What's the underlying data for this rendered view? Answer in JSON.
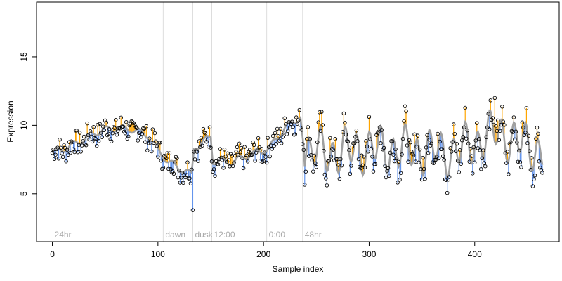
{
  "chart_data": {
    "type": "scatter",
    "title": "",
    "xlabel": "Sample index",
    "ylabel": "Expression",
    "xlim": [
      -15,
      480
    ],
    "ylim": [
      1.5,
      19
    ],
    "xticks": [
      0,
      100,
      200,
      300,
      400
    ],
    "yticks": [
      5,
      10,
      15
    ],
    "grid": false,
    "colors": {
      "observed_points": "#000000",
      "fitted_line": "#a0a0a0",
      "residual_above": "#ffa500",
      "residual_below": "#6495ed",
      "period_lines": "#dddddd",
      "period_labels": "#aaaaaa"
    },
    "period_markers": [
      {
        "label": "24hr",
        "x": 0
      },
      {
        "label": "dawn",
        "x": 105
      },
      {
        "label": "dusk",
        "x": 133
      },
      {
        "label": "12:00",
        "x": 151
      },
      {
        "label": "0:00",
        "x": 203
      },
      {
        "label": "48hr",
        "x": 237
      }
    ],
    "point_count": 465,
    "x": [
      0,
      465
    ],
    "y_anchor_points": [
      {
        "x": 0,
        "y": 8.0
      },
      {
        "x": 15,
        "y": 8.4
      },
      {
        "x": 30,
        "y": 9.0
      },
      {
        "x": 45,
        "y": 9.6
      },
      {
        "x": 60,
        "y": 9.8
      },
      {
        "x": 75,
        "y": 9.7
      },
      {
        "x": 90,
        "y": 9.3
      },
      {
        "x": 100,
        "y": 8.2
      },
      {
        "x": 110,
        "y": 7.3
      },
      {
        "x": 120,
        "y": 6.9
      },
      {
        "x": 132,
        "y": 6.4
      },
      {
        "x": 134,
        "y": 8.3
      },
      {
        "x": 150,
        "y": 9.2
      },
      {
        "x": 152,
        "y": 7.4
      },
      {
        "x": 170,
        "y": 7.3
      },
      {
        "x": 185,
        "y": 7.8
      },
      {
        "x": 205,
        "y": 8.3
      },
      {
        "x": 220,
        "y": 9.8
      },
      {
        "x": 235,
        "y": 10.6
      },
      {
        "x": 238,
        "y": 8.2
      },
      {
        "x": 260,
        "y": 8.0
      },
      {
        "x": 300,
        "y": 8.3
      },
      {
        "x": 340,
        "y": 8.2
      },
      {
        "x": 380,
        "y": 8.0
      },
      {
        "x": 420,
        "y": 9.5
      },
      {
        "x": 465,
        "y": 8.0
      }
    ],
    "y_min_observed": 3.8,
    "y_max_observed": 12.0
  }
}
